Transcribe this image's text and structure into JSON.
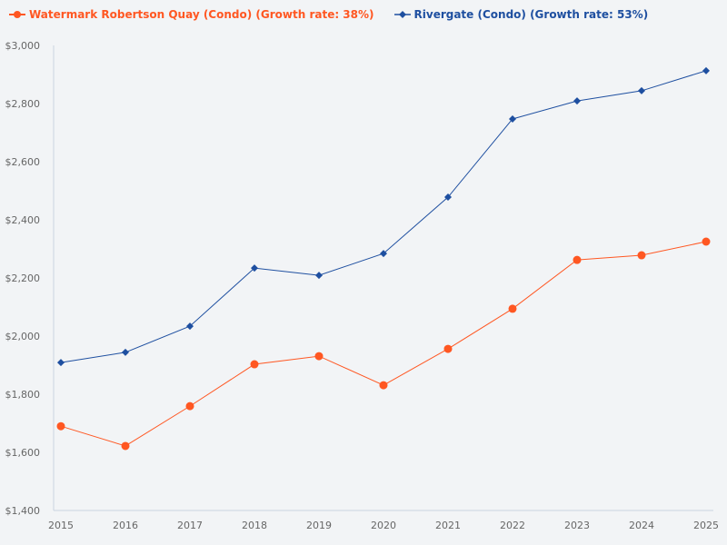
{
  "chart_data": {
    "type": "line",
    "title": "",
    "xlabel": "",
    "ylabel": "",
    "x": [
      2015,
      2016,
      2017,
      2018,
      2019,
      2020,
      2021,
      2022,
      2023,
      2024,
      2025
    ],
    "ylim": [
      1400,
      3000
    ],
    "yticks": [
      "$1,400",
      "$1,600",
      "$1,800",
      "$2,000",
      "$2,200",
      "$2,400",
      "$2,600",
      "$2,800",
      "$3,000"
    ],
    "ytick_values": [
      1400,
      1600,
      1800,
      2000,
      2200,
      2400,
      2600,
      2800,
      3000
    ],
    "grid": false,
    "legend_position": "top-left",
    "series": [
      {
        "name": "Watermark Robertson Quay (Condo) (Growth rate: 38%)",
        "color": "#ff5722",
        "marker": "circle",
        "values": [
          1690,
          1622,
          1759,
          1903,
          1931,
          1831,
          1956,
          2094,
          2262,
          2278,
          2325
        ]
      },
      {
        "name": "Rivergate (Condo) (Growth rate: 53%)",
        "color": "#1e4fa0",
        "marker": "diamond",
        "values": [
          1909,
          1944,
          2034,
          2234,
          2209,
          2284,
          2478,
          2747,
          2809,
          2844,
          2913
        ]
      }
    ]
  }
}
